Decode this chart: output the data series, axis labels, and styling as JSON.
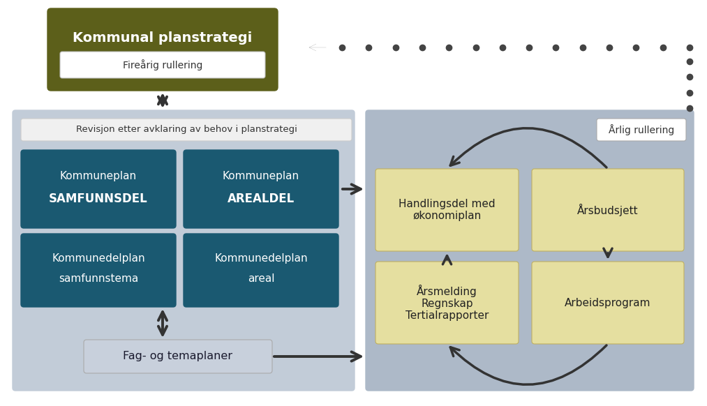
{
  "bg_color": "#ffffff",
  "left_panel_color": "#c2ccd8",
  "right_panel_color": "#adb9c8",
  "dark_teal": "#1a5971",
  "kommunal_bg": "#5c5f1a",
  "kommunal_fg": "#ffffff",
  "white_box": "#ffffff",
  "light_yellow": "#e5dfa0",
  "light_gray_box": "#c8d0dc",
  "title": "Kommunal planstrategi",
  "subtitle": "Fireårig rullering",
  "revisjon_text": "Revisjon etter avklaring av behov i planstrategi",
  "box1_line1": "Kommuneplan",
  "box1_line2": "SAMFUNNSDEL",
  "box2_line1": "Kommuneplan",
  "box2_line2": "AREALDEL",
  "box3_line1": "Kommunedelplan",
  "box3_line2": "samfunnstema",
  "box4_line1": "Kommunedelplan",
  "box4_line2": "areal",
  "handlings_text": "Handlingsdel med\nøkonomiplan",
  "arsbudsjett_text": "Årsbudsjett",
  "arsmelding_text": "Årsmelding\nRegnskap\nTertialrapporter",
  "arbeidsprogram_text": "Arbeidsprogram",
  "fag_text": "Fag- og temaplaner",
  "arlig_text": "Årlig rullering",
  "arrow_color": "#333333",
  "dot_color": "#444444"
}
